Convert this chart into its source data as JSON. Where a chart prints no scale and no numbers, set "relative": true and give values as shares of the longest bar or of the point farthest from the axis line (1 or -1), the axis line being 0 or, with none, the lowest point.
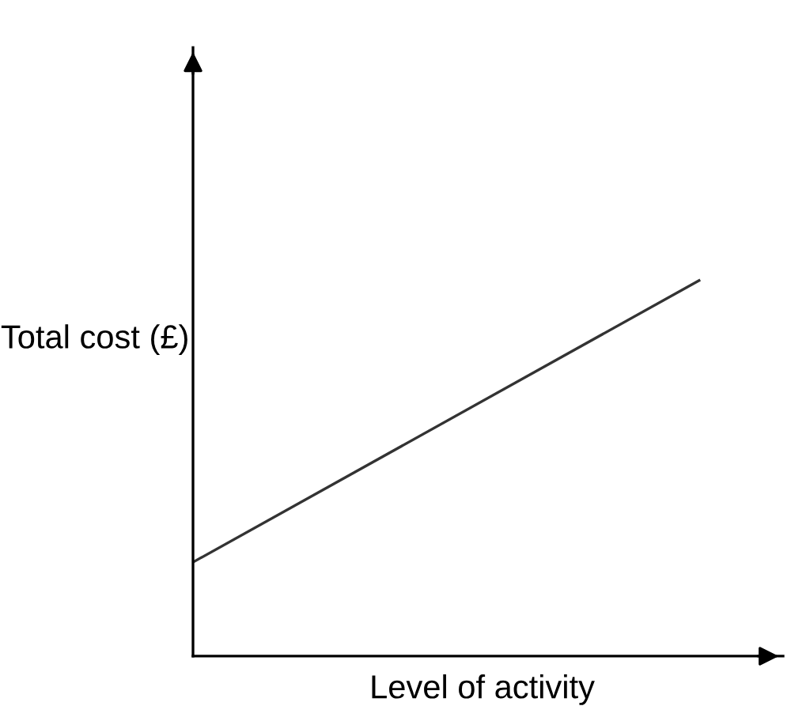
{
  "chart_data": {
    "type": "line",
    "relative": true,
    "xlabel": "Level of activity",
    "ylabel": "Total cost (£)",
    "categories": [
      null,
      null
    ],
    "series": [
      {
        "color": "#333333",
        "values": [
          0.25,
          1
        ]
      }
    ],
    "tick_labels": false
  }
}
